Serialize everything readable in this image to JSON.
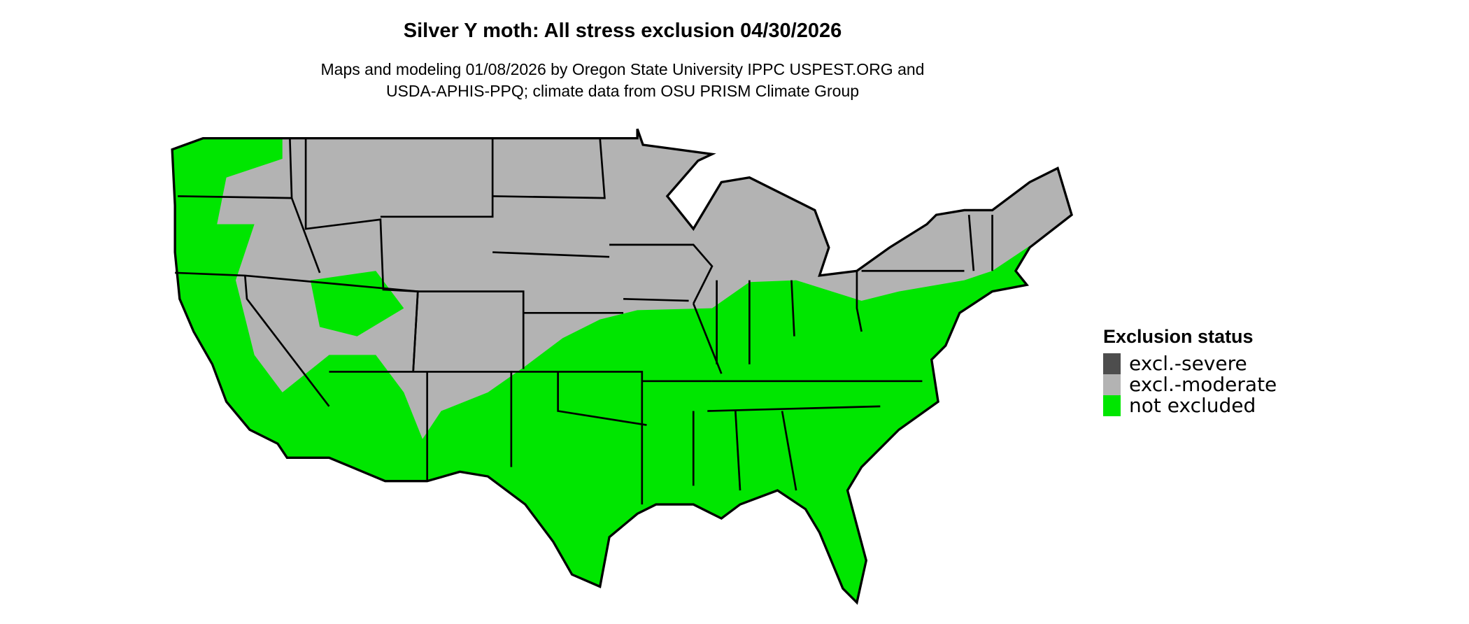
{
  "title": "Silver Y moth: All stress exclusion 04/30/2026",
  "subtitle_lines": [
    "Maps and modeling 01/08/2026 by Oregon State University IPPC USPEST.ORG and",
    "USDA-APHIS-PPQ; climate data from OSU PRISM Climate Group"
  ],
  "map": {
    "region": "Contiguous United States with state borders",
    "colors": {
      "not_excluded": "#00e600",
      "moderate": "#b3b3b3",
      "severe": "#4d4d4d",
      "border": "#000000"
    }
  },
  "legend": {
    "title": "Exclusion status",
    "items": [
      {
        "label": "excl.-severe",
        "color": "#4d4d4d"
      },
      {
        "label": "excl.-moderate",
        "color": "#b3b3b3"
      },
      {
        "label": "not excluded",
        "color": "#00e600"
      }
    ]
  }
}
